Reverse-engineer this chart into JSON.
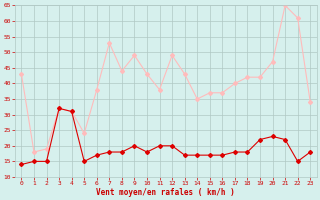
{
  "hours": [
    0,
    1,
    2,
    3,
    4,
    5,
    6,
    7,
    8,
    9,
    10,
    11,
    12,
    13,
    14,
    15,
    16,
    17,
    18,
    19,
    20,
    21,
    22,
    23
  ],
  "wind_mean": [
    14,
    15,
    15,
    32,
    31,
    15,
    17,
    18,
    18,
    20,
    18,
    20,
    20,
    17,
    17,
    17,
    17,
    18,
    18,
    22,
    23,
    22,
    15,
    18
  ],
  "wind_gust": [
    43,
    18,
    19,
    32,
    31,
    24,
    38,
    53,
    44,
    49,
    43,
    38,
    49,
    43,
    35,
    37,
    37,
    40,
    42,
    42,
    47,
    65,
    61,
    34
  ],
  "color_mean": "#dd0000",
  "color_gust": "#ffbbbb",
  "bg_color": "#d6f0ed",
  "grid_color": "#b0c8c4",
  "xlabel": "Vent moyen/en rafales ( km/h )",
  "ylim": [
    10,
    65
  ],
  "yticks": [
    10,
    15,
    20,
    25,
    30,
    35,
    40,
    45,
    50,
    55,
    60,
    65
  ],
  "xticks": [
    0,
    1,
    2,
    3,
    4,
    5,
    6,
    7,
    8,
    9,
    10,
    11,
    12,
    13,
    14,
    15,
    16,
    17,
    18,
    19,
    20,
    21,
    22,
    23
  ],
  "tick_color": "#cc0000",
  "markersize": 2.0,
  "linewidth": 0.8
}
